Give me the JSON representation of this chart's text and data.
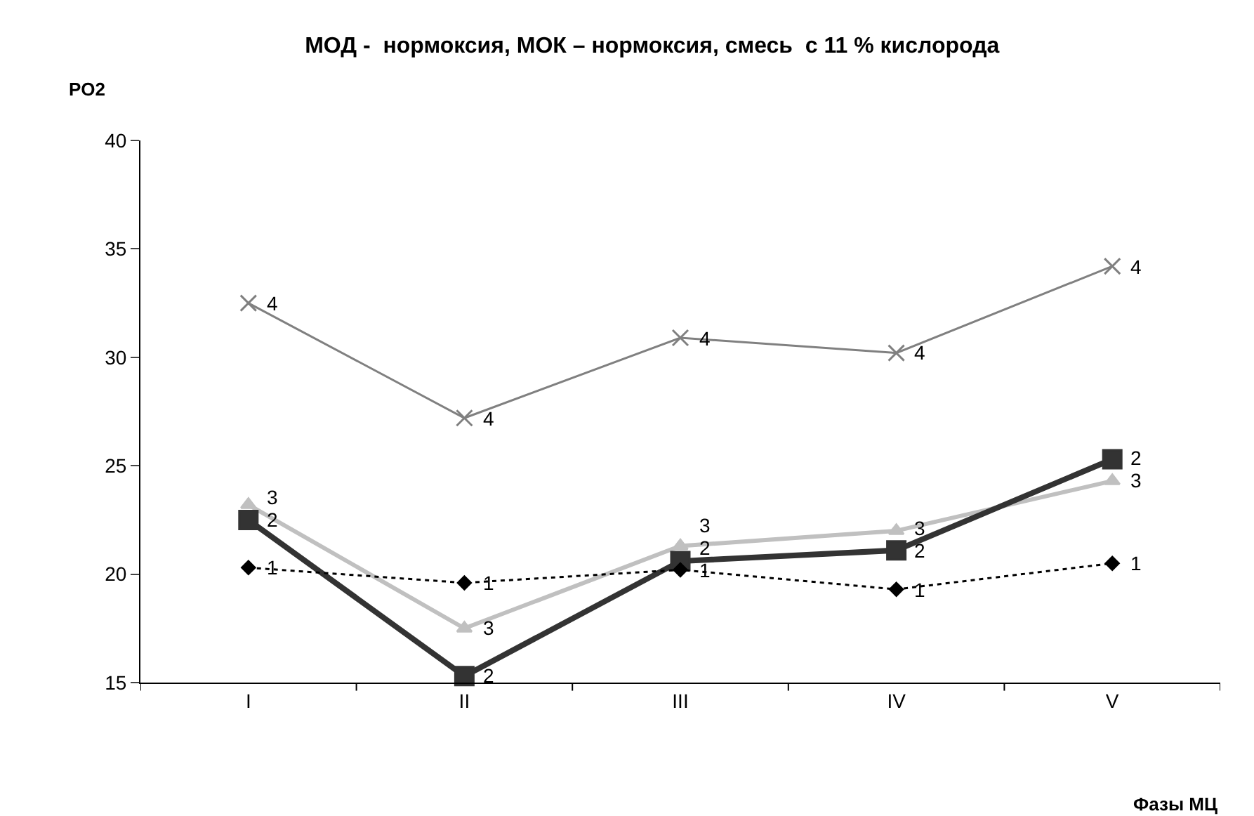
{
  "chart_data": {
    "type": "line",
    "title": "МОД -  нормоксия, МОК – нормоксия, смесь  с 11 % кислорода",
    "ylabel": "PO2",
    "xlabel": "Фазы МЦ",
    "categories": [
      "I",
      "II",
      "III",
      "IV",
      "V"
    ],
    "ylim": [
      15,
      40
    ],
    "yticks": [
      15,
      20,
      25,
      30,
      35,
      40
    ],
    "grid": false,
    "legend": false,
    "series": [
      {
        "name": "1",
        "color": "#000000",
        "marker": "diamond",
        "line_style": "dotted",
        "values": [
          20.3,
          19.6,
          20.2,
          19.3,
          20.5
        ]
      },
      {
        "name": "2",
        "color": "#333333",
        "marker": "square",
        "line_style": "solid",
        "values": [
          22.5,
          15.3,
          20.6,
          21.1,
          25.3
        ]
      },
      {
        "name": "3",
        "color": "#c0c0c0",
        "marker": "triangle",
        "line_style": "solid",
        "values": [
          23.2,
          17.5,
          21.3,
          22.0,
          24.3
        ]
      },
      {
        "name": "4",
        "color": "#808080",
        "marker": "cross",
        "line_style": "solid",
        "values": [
          32.5,
          27.2,
          30.9,
          30.2,
          34.2
        ]
      }
    ]
  }
}
